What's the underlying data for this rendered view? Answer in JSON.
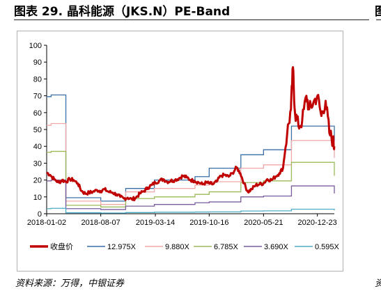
{
  "header": {
    "title": "图表 29. 晶科能源（JKS.N）PE-Band",
    "title_right_fragment": "图"
  },
  "footer": {
    "source": "资料来源：万得，中银证券",
    "source_right_fragment": "资"
  },
  "chart_data": {
    "type": "line",
    "title": "",
    "xlabel": "",
    "ylabel": "",
    "ylim": [
      0,
      100
    ],
    "yticks": [
      0,
      10,
      20,
      30,
      40,
      50,
      60,
      70,
      80,
      90,
      100
    ],
    "xlim": [
      "2018-01-02",
      "2021-03-01"
    ],
    "xticks": [
      "2018-01-02",
      "2018-08-07",
      "2019-03-14",
      "2019-10-16",
      "2020-05-21",
      "2020-12-23"
    ],
    "grid": false,
    "legend_position": "bottom",
    "price_series": {
      "name": "收盘价",
      "color": "#c00000",
      "points": [
        [
          "2018-01-02",
          24.5
        ],
        [
          "2018-01-16",
          23.0
        ],
        [
          "2018-02-01",
          20.5
        ],
        [
          "2018-02-20",
          18.5
        ],
        [
          "2018-03-05",
          20.0
        ],
        [
          "2018-03-20",
          19.0
        ],
        [
          "2018-04-05",
          20.5
        ],
        [
          "2018-04-20",
          20.0
        ],
        [
          "2018-05-07",
          18.0
        ],
        [
          "2018-05-22",
          13.5
        ],
        [
          "2018-06-06",
          12.0
        ],
        [
          "2018-06-21",
          12.5
        ],
        [
          "2018-07-06",
          13.0
        ],
        [
          "2018-07-23",
          14.0
        ],
        [
          "2018-08-07",
          13.5
        ],
        [
          "2018-08-22",
          14.5
        ],
        [
          "2018-09-07",
          13.0
        ],
        [
          "2018-09-24",
          12.5
        ],
        [
          "2018-10-09",
          11.5
        ],
        [
          "2018-10-24",
          10.0
        ],
        [
          "2018-11-08",
          9.0
        ],
        [
          "2018-11-23",
          9.5
        ],
        [
          "2018-12-10",
          8.5
        ],
        [
          "2018-12-26",
          9.5
        ],
        [
          "2019-01-11",
          12.0
        ],
        [
          "2019-01-28",
          13.5
        ],
        [
          "2019-02-12",
          15.5
        ],
        [
          "2019-02-27",
          17.0
        ],
        [
          "2019-03-14",
          18.5
        ],
        [
          "2019-03-29",
          19.5
        ],
        [
          "2019-04-15",
          20.5
        ],
        [
          "2019-04-30",
          19.0
        ],
        [
          "2019-05-15",
          19.5
        ],
        [
          "2019-05-31",
          20.0
        ],
        [
          "2019-06-17",
          21.0
        ],
        [
          "2019-07-02",
          22.5
        ],
        [
          "2019-07-18",
          21.5
        ],
        [
          "2019-08-02",
          20.0
        ],
        [
          "2019-08-19",
          19.5
        ],
        [
          "2019-09-04",
          18.5
        ],
        [
          "2019-09-19",
          17.5
        ],
        [
          "2019-10-04",
          18.5
        ],
        [
          "2019-10-16",
          18.0
        ],
        [
          "2019-10-31",
          17.5
        ],
        [
          "2019-11-15",
          19.0
        ],
        [
          "2019-12-02",
          22.5
        ],
        [
          "2019-12-17",
          23.0
        ],
        [
          "2020-01-02",
          22.0
        ],
        [
          "2020-01-17",
          24.0
        ],
        [
          "2020-02-03",
          27.5
        ],
        [
          "2020-02-18",
          24.0
        ],
        [
          "2020-03-04",
          18.0
        ],
        [
          "2020-03-19",
          13.0
        ],
        [
          "2020-04-03",
          14.5
        ],
        [
          "2020-04-20",
          17.0
        ],
        [
          "2020-05-05",
          17.5
        ],
        [
          "2020-05-21",
          18.0
        ],
        [
          "2020-06-05",
          20.5
        ],
        [
          "2020-06-22",
          20.0
        ],
        [
          "2020-07-08",
          22.0
        ],
        [
          "2020-07-23",
          24.0
        ],
        [
          "2020-08-07",
          27.0
        ],
        [
          "2020-08-24",
          48.0
        ],
        [
          "2020-09-08",
          62.0
        ],
        [
          "2020-09-16",
          87.0
        ],
        [
          "2020-09-24",
          60.0
        ],
        [
          "2020-10-08",
          52.0
        ],
        [
          "2020-10-23",
          55.0
        ],
        [
          "2020-11-09",
          70.0
        ],
        [
          "2020-11-20",
          62.0
        ],
        [
          "2020-12-07",
          66.0
        ],
        [
          "2020-12-23",
          70.0
        ],
        [
          "2021-01-08",
          58.0
        ],
        [
          "2021-01-25",
          67.0
        ],
        [
          "2021-02-09",
          48.0
        ],
        [
          "2021-02-24",
          43.0
        ],
        [
          "2021-03-01",
          40.0
        ]
      ]
    },
    "pe_series": [
      {
        "name": "12.975X",
        "color": "#3a6fa8",
        "steps": [
          [
            "2018-01-02",
            69.5
          ],
          [
            "2018-01-20",
            70.5
          ],
          [
            "2018-03-20",
            9.5
          ],
          [
            "2018-08-07",
            7.5
          ],
          [
            "2018-11-15",
            15.0
          ],
          [
            "2019-03-10",
            20.0
          ],
          [
            "2019-08-20",
            22.0
          ],
          [
            "2019-10-16",
            27.0
          ],
          [
            "2020-02-20",
            35.0
          ],
          [
            "2020-05-21",
            38.0
          ],
          [
            "2020-09-10",
            52.0
          ],
          [
            "2021-03-01",
            43.0
          ]
        ]
      },
      {
        "name": "9.880X",
        "color": "#f0a8a8",
        "steps": [
          [
            "2018-01-02",
            52.5
          ],
          [
            "2018-01-20",
            53.5
          ],
          [
            "2018-03-20",
            7.5
          ],
          [
            "2018-08-07",
            5.5
          ],
          [
            "2018-11-15",
            13.0
          ],
          [
            "2019-03-10",
            15.0
          ],
          [
            "2019-08-20",
            17.0
          ],
          [
            "2019-10-16",
            19.0
          ],
          [
            "2020-02-20",
            27.0
          ],
          [
            "2020-05-21",
            29.0
          ],
          [
            "2020-09-10",
            43.5
          ],
          [
            "2021-03-01",
            33.0
          ]
        ]
      },
      {
        "name": "6.785X",
        "color": "#9bbb59",
        "steps": [
          [
            "2018-01-02",
            36.5
          ],
          [
            "2018-01-20",
            37.0
          ],
          [
            "2018-03-20",
            5.0
          ],
          [
            "2018-08-07",
            4.0
          ],
          [
            "2018-11-15",
            9.0
          ],
          [
            "2019-03-10",
            10.0
          ],
          [
            "2019-08-20",
            11.5
          ],
          [
            "2019-10-16",
            13.0
          ],
          [
            "2020-02-20",
            18.5
          ],
          [
            "2020-05-21",
            19.5
          ],
          [
            "2020-09-10",
            30.5
          ],
          [
            "2021-03-01",
            22.5
          ]
        ]
      },
      {
        "name": "3.690X",
        "color": "#7a5c9e",
        "steps": [
          [
            "2018-01-02",
            19.5
          ],
          [
            "2018-01-20",
            20.0
          ],
          [
            "2018-03-20",
            3.0
          ],
          [
            "2018-08-07",
            2.5
          ],
          [
            "2018-11-15",
            4.5
          ],
          [
            "2019-03-10",
            5.5
          ],
          [
            "2019-08-20",
            6.5
          ],
          [
            "2019-10-16",
            7.0
          ],
          [
            "2020-02-20",
            10.0
          ],
          [
            "2020-05-21",
            10.5
          ],
          [
            "2020-09-10",
            16.5
          ],
          [
            "2021-03-01",
            12.0
          ]
        ]
      },
      {
        "name": "0.595X",
        "color": "#4bacc6",
        "steps": [
          [
            "2018-01-02",
            3.0
          ],
          [
            "2018-01-20",
            3.2
          ],
          [
            "2018-03-20",
            0.6
          ],
          [
            "2018-08-07",
            0.4
          ],
          [
            "2018-11-15",
            0.7
          ],
          [
            "2019-03-10",
            0.9
          ],
          [
            "2019-08-20",
            1.0
          ],
          [
            "2019-10-16",
            1.1
          ],
          [
            "2020-02-20",
            1.6
          ],
          [
            "2020-05-21",
            1.7
          ],
          [
            "2020-09-10",
            2.7
          ],
          [
            "2021-03-01",
            2.0
          ]
        ]
      }
    ]
  }
}
